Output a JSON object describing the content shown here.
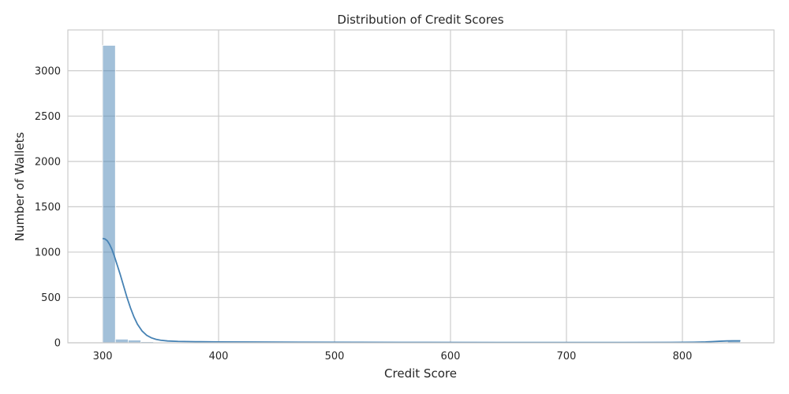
{
  "chart_data": {
    "type": "bar",
    "subtype": "histogram",
    "title": "Distribution of Credit Scores",
    "xlabel": "Credit Score",
    "ylabel": "Number of Wallets",
    "xlim": [
      270,
      879
    ],
    "ylim": [
      0,
      3450
    ],
    "xticks": [
      300,
      400,
      500,
      600,
      700,
      800
    ],
    "yticks": [
      0,
      500,
      1000,
      1500,
      2000,
      2500,
      3000
    ],
    "grid": true,
    "bar_color": "#4682b4",
    "bin_edges": [
      300,
      311,
      322,
      333,
      344,
      355,
      366,
      377,
      388,
      399,
      410,
      421,
      432,
      443,
      454,
      465,
      476,
      487,
      498,
      509,
      520,
      531,
      542,
      553,
      564,
      575,
      586,
      597,
      608,
      619,
      630,
      641,
      652,
      663,
      674,
      685,
      696,
      707,
      718,
      729,
      740,
      751,
      762,
      773,
      784,
      795,
      806,
      817,
      828,
      839,
      850
    ],
    "counts": [
      3280,
      40,
      30,
      12,
      8,
      6,
      5,
      5,
      4,
      4,
      4,
      3,
      3,
      3,
      2,
      2,
      2,
      2,
      2,
      1,
      1,
      1,
      1,
      1,
      1,
      1,
      1,
      1,
      1,
      1,
      1,
      1,
      1,
      1,
      1,
      1,
      1,
      1,
      1,
      1,
      1,
      1,
      1,
      1,
      1,
      1,
      2,
      3,
      8,
      22
    ],
    "kde": {
      "x": [
        300,
        302,
        304,
        306,
        308,
        310,
        312,
        315,
        318,
        321,
        324,
        327,
        330,
        334,
        338,
        342,
        346,
        350,
        356,
        365,
        380,
        400,
        430,
        470,
        520,
        580,
        640,
        700,
        750,
        790,
        810,
        820,
        826,
        832,
        838,
        844,
        850
      ],
      "y": [
        1150,
        1145,
        1125,
        1085,
        1030,
        960,
        880,
        760,
        630,
        500,
        385,
        285,
        205,
        130,
        82,
        55,
        38,
        28,
        20,
        15,
        12,
        10,
        8,
        6,
        5,
        4,
        3,
        3,
        3,
        4,
        6,
        9,
        13,
        17,
        20,
        22,
        22
      ]
    }
  }
}
